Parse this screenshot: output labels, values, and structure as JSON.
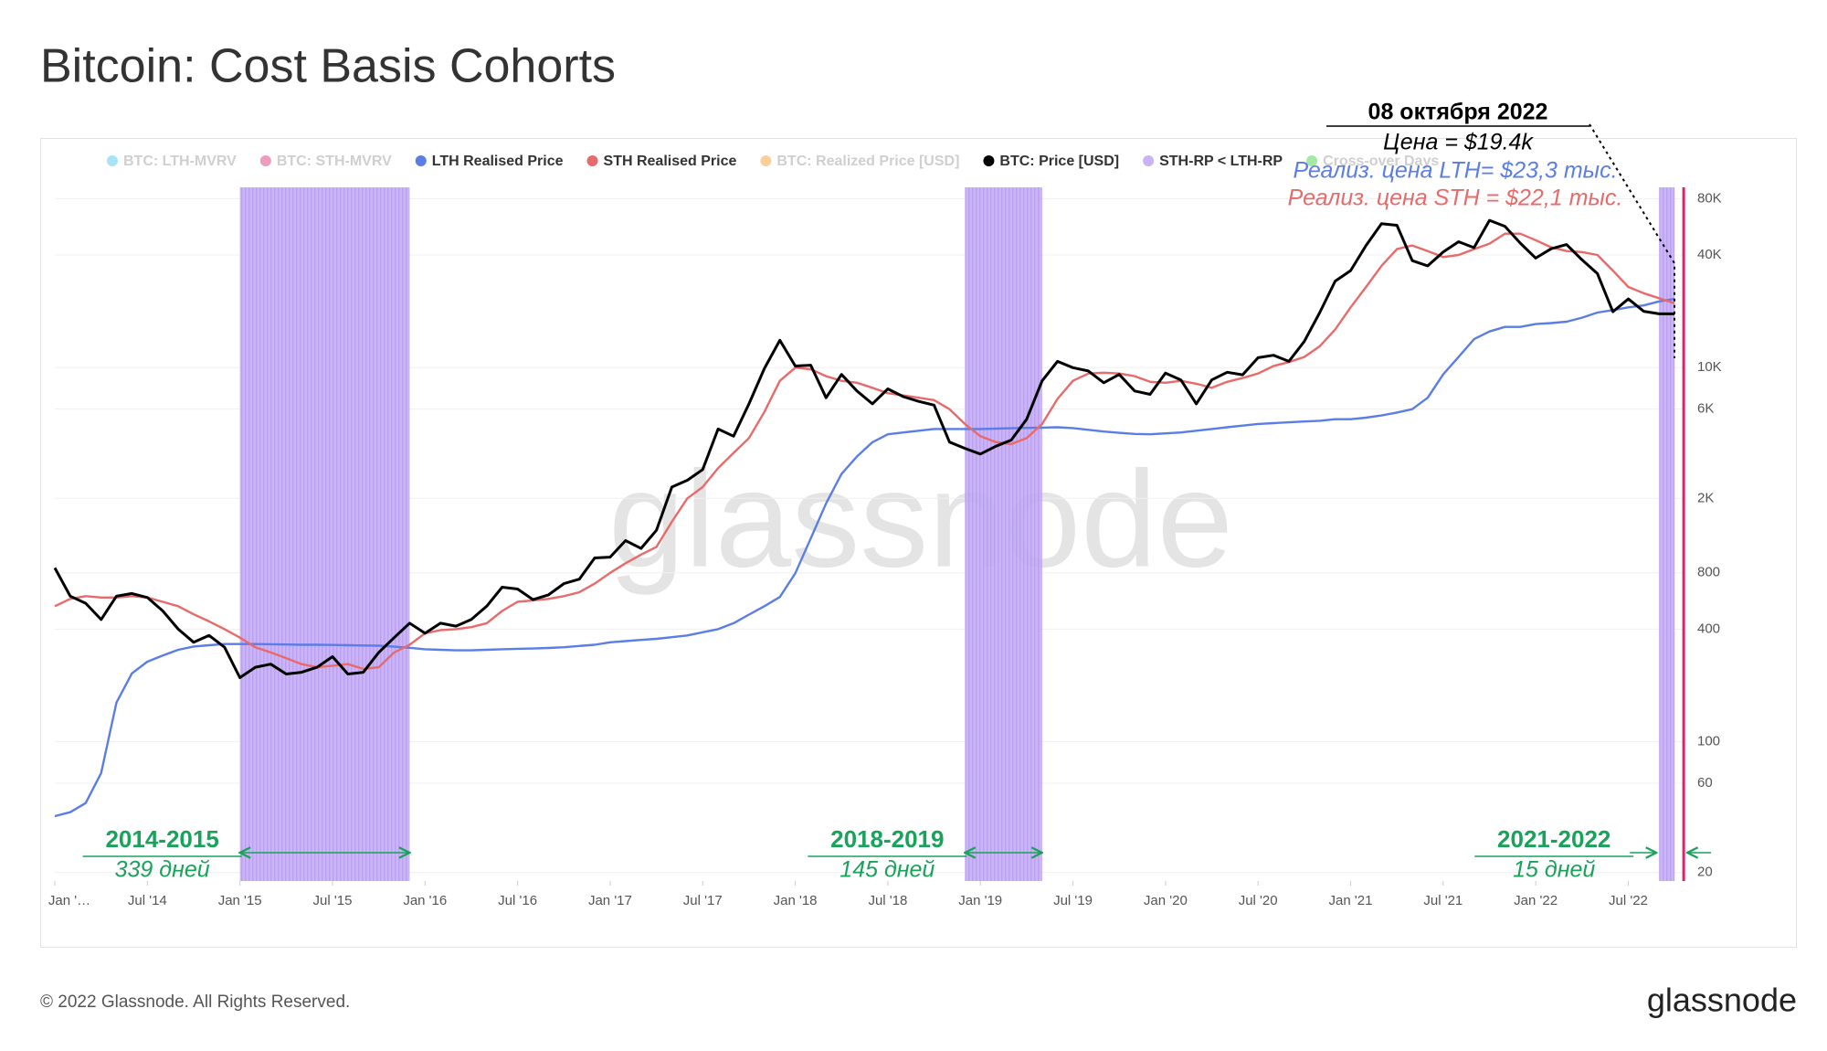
{
  "chart_data": {
    "type": "line",
    "title": "Bitcoin: Cost Basis Cohorts",
    "log_scale": true,
    "grid": true,
    "legend_position": "top",
    "ylim": [
      18,
      92000
    ],
    "yticks": [
      20,
      60,
      100,
      400,
      800,
      {
        "value": 2000,
        "label": "2K"
      },
      {
        "value": 6000,
        "label": "6K"
      },
      {
        "value": 10000,
        "label": "10K"
      },
      {
        "value": 40000,
        "label": "40K"
      },
      {
        "value": 80000,
        "label": "80K"
      }
    ],
    "xlim": [
      "2014-01",
      "2022-11"
    ],
    "xticks": [
      {
        "value": "2014-01",
        "label": "Jan '…"
      },
      {
        "value": "2014-07",
        "label": "Jul '14"
      },
      {
        "value": "2015-01",
        "label": "Jan '15"
      },
      {
        "value": "2015-07",
        "label": "Jul '15"
      },
      {
        "value": "2016-01",
        "label": "Jan '16"
      },
      {
        "value": "2016-07",
        "label": "Jul '16"
      },
      {
        "value": "2017-01",
        "label": "Jan '17"
      },
      {
        "value": "2017-07",
        "label": "Jul '17"
      },
      {
        "value": "2018-01",
        "label": "Jan '18"
      },
      {
        "value": "2018-07",
        "label": "Jul '18"
      },
      {
        "value": "2019-01",
        "label": "Jan '19"
      },
      {
        "value": "2019-07",
        "label": "Jul '19"
      },
      {
        "value": "2020-01",
        "label": "Jan '20"
      },
      {
        "value": "2020-07",
        "label": "Jul '20"
      },
      {
        "value": "2021-01",
        "label": "Jan '21"
      },
      {
        "value": "2021-07",
        "label": "Jul '21"
      },
      {
        "value": "2022-01",
        "label": "Jan '22"
      },
      {
        "value": "2022-07",
        "label": "Jul '22"
      }
    ],
    "x": [
      "2014-01",
      "2014-02",
      "2014-03",
      "2014-04",
      "2014-05",
      "2014-06",
      "2014-07",
      "2014-08",
      "2014-09",
      "2014-10",
      "2014-11",
      "2014-12",
      "2015-01",
      "2015-02",
      "2015-03",
      "2015-04",
      "2015-05",
      "2015-06",
      "2015-07",
      "2015-08",
      "2015-09",
      "2015-10",
      "2015-11",
      "2015-12",
      "2016-01",
      "2016-02",
      "2016-03",
      "2016-04",
      "2016-05",
      "2016-06",
      "2016-07",
      "2016-08",
      "2016-09",
      "2016-10",
      "2016-11",
      "2016-12",
      "2017-01",
      "2017-02",
      "2017-03",
      "2017-04",
      "2017-05",
      "2017-06",
      "2017-07",
      "2017-08",
      "2017-09",
      "2017-10",
      "2017-11",
      "2017-12",
      "2018-01",
      "2018-02",
      "2018-03",
      "2018-04",
      "2018-05",
      "2018-06",
      "2018-07",
      "2018-08",
      "2018-09",
      "2018-10",
      "2018-11",
      "2018-12",
      "2019-01",
      "2019-02",
      "2019-03",
      "2019-04",
      "2019-05",
      "2019-06",
      "2019-07",
      "2019-08",
      "2019-09",
      "2019-10",
      "2019-11",
      "2019-12",
      "2020-01",
      "2020-02",
      "2020-03",
      "2020-04",
      "2020-05",
      "2020-06",
      "2020-07",
      "2020-08",
      "2020-09",
      "2020-10",
      "2020-11",
      "2020-12",
      "2021-01",
      "2021-02",
      "2021-03",
      "2021-04",
      "2021-05",
      "2021-06",
      "2021-07",
      "2021-08",
      "2021-09",
      "2021-10",
      "2021-11",
      "2021-12",
      "2022-01",
      "2022-02",
      "2022-03",
      "2022-04",
      "2022-05",
      "2022-06",
      "2022-07",
      "2022-08",
      "2022-09",
      "2022-10"
    ],
    "series": [
      {
        "name": "BTC: LTH-MVRV",
        "color": "#3fc1e9",
        "hidden": true
      },
      {
        "name": "BTC: STH-MVRV",
        "color": "#d6246e",
        "hidden": true
      },
      {
        "name": "LTH Realised Price",
        "color": "#5b7de6",
        "values": [
          40,
          42,
          47,
          68,
          162,
          232,
          268,
          289,
          310,
          323,
          328,
          333,
          333,
          333,
          332,
          331,
          330,
          330,
          329,
          328,
          327,
          326,
          322,
          318,
          312,
          310,
          308,
          308,
          310,
          312,
          314,
          315,
          317,
          320,
          325,
          330,
          340,
          345,
          350,
          355,
          362,
          370,
          385,
          400,
          430,
          478,
          530,
          594,
          795,
          1220,
          1880,
          2700,
          3350,
          3990,
          4400,
          4500,
          4600,
          4700,
          4700,
          4700,
          4700,
          4720,
          4740,
          4760,
          4780,
          4800,
          4750,
          4650,
          4550,
          4480,
          4420,
          4400,
          4450,
          4500,
          4600,
          4700,
          4800,
          4900,
          5000,
          5050,
          5100,
          5150,
          5200,
          5300,
          5300,
          5400,
          5550,
          5750,
          6000,
          6900,
          9200,
          11400,
          14200,
          15600,
          16500,
          16500,
          17100,
          17300,
          17600,
          18500,
          19700,
          20300,
          21000,
          21500,
          22600,
          23300
        ]
      },
      {
        "name": "STH Realised Price",
        "color": "#e86a6a",
        "values": [
          530,
          580,
          600,
          590,
          590,
          600,
          590,
          560,
          530,
          480,
          440,
          400,
          360,
          320,
          300,
          280,
          260,
          250,
          255,
          260,
          245,
          250,
          300,
          330,
          380,
          395,
          400,
          410,
          430,
          500,
          560,
          570,
          580,
          600,
          630,
          700,
          800,
          900,
          1000,
          1100,
          1500,
          2000,
          2300,
          2900,
          3500,
          4200,
          5800,
          8500,
          10000,
          9800,
          9000,
          8500,
          8300,
          7800,
          7300,
          7100,
          6900,
          6700,
          6000,
          5000,
          4300,
          4000,
          3900,
          4200,
          5000,
          6800,
          8500,
          9300,
          9400,
          9300,
          9000,
          8400,
          8300,
          8500,
          8200,
          7800,
          8400,
          8800,
          9300,
          10200,
          10700,
          11400,
          13000,
          16000,
          21000,
          27000,
          35000,
          43000,
          45000,
          42000,
          39000,
          40000,
          43000,
          46000,
          52000,
          52000,
          48000,
          44000,
          42000,
          41500,
          40000,
          33000,
          27000,
          25000,
          23500,
          22100
        ]
      },
      {
        "name": "BTC: Realized Price [USD]",
        "color": "#f2941f",
        "hidden": true
      },
      {
        "name": "BTC: Price [USD]",
        "color": "#000000",
        "values": [
          850,
          600,
          550,
          450,
          600,
          620,
          590,
          500,
          400,
          340,
          370,
          320,
          220,
          250,
          260,
          230,
          235,
          250,
          285,
          230,
          235,
          300,
          360,
          430,
          380,
          430,
          415,
          450,
          530,
          670,
          655,
          575,
          610,
          700,
          740,
          960,
          970,
          1190,
          1080,
          1350,
          2300,
          2500,
          2850,
          4700,
          4300,
          6400,
          9900,
          14000,
          10200,
          10300,
          6900,
          9200,
          7500,
          6400,
          7700,
          7000,
          6600,
          6300,
          4000,
          3700,
          3450,
          3800,
          4100,
          5300,
          8500,
          10800,
          10000,
          9600,
          8300,
          9200,
          7500,
          7200,
          9350,
          8600,
          6400,
          8600,
          9450,
          9150,
          11300,
          11650,
          10800,
          13800,
          19700,
          29000,
          33000,
          45000,
          58800,
          57700,
          37300,
          35000,
          41500,
          47100,
          43800,
          61300,
          57000,
          46300,
          38500,
          43200,
          45500,
          37700,
          31800,
          19900,
          23300,
          20000,
          19400,
          19400
        ]
      },
      {
        "name": "STH-RP < LTH-RP",
        "color": "#c8b3f5",
        "periods": [
          {
            "start": "2015-01",
            "end": "2015-12",
            "label": "2014-2015",
            "duration": "339 дней"
          },
          {
            "start": "2018-12",
            "end": "2019-05",
            "label": "2018-2019",
            "duration": "145 дней"
          },
          {
            "start": "2022-09",
            "end": "2022-10",
            "label": "2021-2022",
            "duration": "15 дней"
          }
        ]
      },
      {
        "name": "Cross-over Days",
        "color": "#33cc33",
        "hidden": true
      }
    ],
    "tooltip": {
      "date": "08 октября 2022",
      "lines": [
        {
          "text": "Цена = $19.4k",
          "color": "#000000"
        },
        {
          "text": "Реализ. цена LTH= $23,3 тыс.",
          "color": "#5b7de6"
        },
        {
          "text": "Реализ. цена STH = $22,1 тыс.",
          "color": "#e86a6a"
        }
      ]
    },
    "watermark": "glassnode"
  },
  "footer": {
    "copyright": "© 2022 Glassnode. All Rights Reserved.",
    "logo": "glassnode"
  }
}
